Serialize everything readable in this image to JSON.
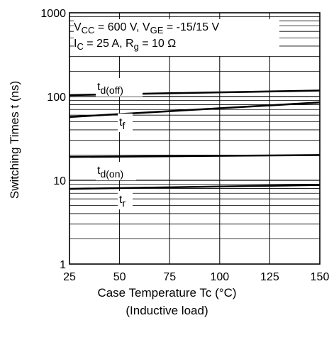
{
  "chart_data": {
    "type": "line",
    "title": "",
    "ylabel": "Switching Times   t  (ns)",
    "xlabel": "Case Temperature   Tc  (°C)",
    "xlabel2": "(Inductive load)",
    "xlim": [
      25,
      150
    ],
    "ylim": [
      1,
      1000
    ],
    "yscale": "log",
    "grid": true,
    "x_ticks": [
      25,
      50,
      75,
      100,
      125,
      150
    ],
    "x_tick_labels": [
      "25",
      "50",
      "75",
      "100",
      "125",
      "150"
    ],
    "y_ticks": [
      1,
      10,
      100,
      1000
    ],
    "y_tick_labels": [
      "1",
      "10",
      "100",
      "1000"
    ],
    "conditions": {
      "line1_parts": [
        {
          "t": "V"
        },
        {
          "t": "CC",
          "sub": true
        },
        {
          "t": " = 600 V, V"
        },
        {
          "t": "GE",
          "sub": true
        },
        {
          "t": " = -15/15 V"
        }
      ],
      "line2_parts": [
        {
          "t": "I"
        },
        {
          "t": "C",
          "sub": true
        },
        {
          "t": " = 25 A, R"
        },
        {
          "t": "g",
          "sub": true
        },
        {
          "t": " = 10 Ω"
        }
      ]
    },
    "series": [
      {
        "name": "td(off)",
        "label_main": "t",
        "label_sub": "d(off)",
        "x": [
          25,
          150
        ],
        "y": [
          104,
          118
        ]
      },
      {
        "name": "tf",
        "label_main": "t",
        "label_sub": "f",
        "x": [
          25,
          150
        ],
        "y": [
          57,
          85
        ]
      },
      {
        "name": "td(on)",
        "label_main": "t",
        "label_sub": "d(on)",
        "x": [
          25,
          150
        ],
        "y": [
          19,
          20
        ]
      },
      {
        "name": "tr",
        "label_main": "t",
        "label_sub": "r",
        "x": [
          25,
          150
        ],
        "y": [
          7.9,
          8.8
        ]
      }
    ]
  }
}
